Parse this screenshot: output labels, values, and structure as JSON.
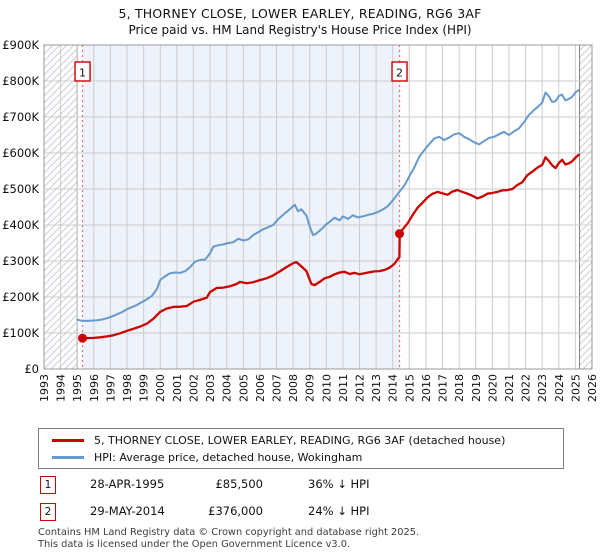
{
  "title": {
    "line1": "5, THORNEY CLOSE, LOWER EARLEY, READING, RG6 3AF",
    "line2": "Price paid vs. HM Land Registry's House Price Index (HPI)"
  },
  "colors": {
    "property_line": "#cc0000",
    "hpi_line": "#6699cc",
    "sale_band": "#edf2fb",
    "grid": "#cccccc",
    "plot_border": "#999999",
    "hatch_line": "#c9ced6",
    "hatch_edge": "#808080",
    "event_dash": "#e87070",
    "marker_border": "#cc0000"
  },
  "legend": [
    {
      "label": "5, THORNEY CLOSE, LOWER EARLEY, READING, RG6 3AF (detached house)",
      "color": "#cc0000"
    },
    {
      "label": "HPI: Average price, detached house, Wokingham",
      "color": "#6699cc"
    }
  ],
  "annotations": [
    {
      "num": "1",
      "date": "28-APR-1995",
      "price": "£85,500",
      "vs_hpi": "36% ↓ HPI"
    },
    {
      "num": "2",
      "date": "29-MAY-2014",
      "price": "£376,000",
      "vs_hpi": "24% ↓ HPI"
    }
  ],
  "footer": {
    "line1": "Contains HM Land Registry data © Crown copyright and database right 2025.",
    "line2": "This data is licensed under the Open Government Licence v3.0."
  },
  "chart_data": {
    "type": "line",
    "title": "Price paid vs. HM Land Registry's House Price Index (HPI)",
    "xlabel": "Year",
    "ylabel": "Price (GBP)",
    "xlim": [
      1993,
      2026
    ],
    "ylim": [
      0,
      900000
    ],
    "grid": true,
    "legend_position": "bottom",
    "x_ticks": [
      1993,
      1994,
      1995,
      1996,
      1997,
      1998,
      1999,
      2000,
      2001,
      2002,
      2003,
      2004,
      2005,
      2006,
      2007,
      2008,
      2009,
      2010,
      2011,
      2012,
      2013,
      2014,
      2015,
      2016,
      2017,
      2018,
      2019,
      2020,
      2021,
      2022,
      2023,
      2024,
      2025,
      2026
    ],
    "y_ticks": [
      {
        "v": 0,
        "label": "£0"
      },
      {
        "v": 100000,
        "label": "£100K"
      },
      {
        "v": 200000,
        "label": "£200K"
      },
      {
        "v": 300000,
        "label": "£300K"
      },
      {
        "v": 400000,
        "label": "£400K"
      },
      {
        "v": 500000,
        "label": "£500K"
      },
      {
        "v": 600000,
        "label": "£600K"
      },
      {
        "v": 700000,
        "label": "£700K"
      },
      {
        "v": 800000,
        "label": "£800K"
      },
      {
        "v": 900000,
        "label": "£900K"
      }
    ],
    "no_data_hatch_regions": [
      [
        1993,
        1995.0
      ],
      [
        2025.25,
        2026
      ]
    ],
    "ownership_shaded_region": [
      1995.32,
      2014.41
    ],
    "events": [
      {
        "n": "1",
        "x": 1995.32,
        "y": 85500,
        "date": "28-APR-1995",
        "price_paid": 85500,
        "vs_hpi": "36% below HPI"
      },
      {
        "n": "2",
        "x": 2014.41,
        "y": 376000,
        "date": "29-MAY-2014",
        "price_paid": 376000,
        "vs_hpi": "24% below HPI"
      }
    ],
    "series": [
      {
        "name": "HPI: Average price, detached house, Wokingham",
        "color": "#6699cc",
        "width": 2,
        "points": [
          [
            1995.0,
            137000
          ],
          [
            1995.3,
            134000
          ],
          [
            1995.6,
            133500
          ],
          [
            1995.9,
            134500
          ],
          [
            1996.2,
            135500
          ],
          [
            1996.5,
            137500
          ],
          [
            1996.8,
            141000
          ],
          [
            1997.1,
            146000
          ],
          [
            1997.4,
            152000
          ],
          [
            1997.7,
            158000
          ],
          [
            1998.0,
            166000
          ],
          [
            1998.3,
            172000
          ],
          [
            1998.6,
            178000
          ],
          [
            1998.9,
            186000
          ],
          [
            1999.2,
            194000
          ],
          [
            1999.5,
            203000
          ],
          [
            1999.8,
            222000
          ],
          [
            2000.0,
            247000
          ],
          [
            2000.3,
            258000
          ],
          [
            2000.6,
            266000
          ],
          [
            2000.9,
            268000
          ],
          [
            2001.2,
            267000
          ],
          [
            2001.5,
            272000
          ],
          [
            2001.8,
            283000
          ],
          [
            2002.1,
            298000
          ],
          [
            2002.4,
            303000
          ],
          [
            2002.7,
            304000
          ],
          [
            2003.0,
            322000
          ],
          [
            2003.2,
            340000
          ],
          [
            2003.5,
            344000
          ],
          [
            2003.8,
            346000
          ],
          [
            2004.1,
            350000
          ],
          [
            2004.4,
            352000
          ],
          [
            2004.7,
            362000
          ],
          [
            2005.0,
            357000
          ],
          [
            2005.3,
            360000
          ],
          [
            2005.6,
            372000
          ],
          [
            2005.9,
            380000
          ],
          [
            2006.2,
            388000
          ],
          [
            2006.5,
            394000
          ],
          [
            2006.8,
            400000
          ],
          [
            2007.1,
            416000
          ],
          [
            2007.4,
            428000
          ],
          [
            2007.7,
            440000
          ],
          [
            2008.0,
            452000
          ],
          [
            2008.1,
            456000
          ],
          [
            2008.3,
            438000
          ],
          [
            2008.5,
            444000
          ],
          [
            2008.8,
            426000
          ],
          [
            2009.0,
            396000
          ],
          [
            2009.2,
            372000
          ],
          [
            2009.4,
            376000
          ],
          [
            2009.7,
            388000
          ],
          [
            2010.0,
            402000
          ],
          [
            2010.2,
            409000
          ],
          [
            2010.5,
            420000
          ],
          [
            2010.8,
            413000
          ],
          [
            2011.0,
            424000
          ],
          [
            2011.3,
            417000
          ],
          [
            2011.6,
            427000
          ],
          [
            2011.9,
            421000
          ],
          [
            2012.2,
            424000
          ],
          [
            2012.5,
            428000
          ],
          [
            2012.8,
            431000
          ],
          [
            2013.1,
            436000
          ],
          [
            2013.4,
            443000
          ],
          [
            2013.7,
            452000
          ],
          [
            2014.0,
            468000
          ],
          [
            2014.2,
            480000
          ],
          [
            2014.4,
            492000
          ],
          [
            2014.7,
            510000
          ],
          [
            2015.0,
            535000
          ],
          [
            2015.3,
            560000
          ],
          [
            2015.6,
            590000
          ],
          [
            2015.9,
            608000
          ],
          [
            2016.2,
            625000
          ],
          [
            2016.5,
            640000
          ],
          [
            2016.8,
            645000
          ],
          [
            2017.1,
            636000
          ],
          [
            2017.4,
            643000
          ],
          [
            2017.7,
            652000
          ],
          [
            2018.0,
            655000
          ],
          [
            2018.3,
            645000
          ],
          [
            2018.6,
            638000
          ],
          [
            2018.9,
            630000
          ],
          [
            2019.2,
            624000
          ],
          [
            2019.5,
            633000
          ],
          [
            2019.8,
            642000
          ],
          [
            2020.1,
            645000
          ],
          [
            2020.4,
            652000
          ],
          [
            2020.7,
            659000
          ],
          [
            2021.0,
            650000
          ],
          [
            2021.3,
            660000
          ],
          [
            2021.6,
            668000
          ],
          [
            2021.9,
            685000
          ],
          [
            2022.2,
            706000
          ],
          [
            2022.5,
            719000
          ],
          [
            2022.8,
            731000
          ],
          [
            2023.0,
            740000
          ],
          [
            2023.2,
            768000
          ],
          [
            2023.4,
            758000
          ],
          [
            2023.6,
            742000
          ],
          [
            2023.8,
            744000
          ],
          [
            2024.0,
            758000
          ],
          [
            2024.2,
            762000
          ],
          [
            2024.4,
            746000
          ],
          [
            2024.6,
            750000
          ],
          [
            2024.8,
            756000
          ],
          [
            2025.0,
            768000
          ],
          [
            2025.2,
            775000
          ]
        ]
      },
      {
        "name": "5, THORNEY CLOSE, LOWER EARLEY, READING, RG6 3AF (detached house)",
        "color": "#cc0000",
        "width": 2.3,
        "points": [
          [
            1995.32,
            85500
          ],
          [
            1995.6,
            85800
          ],
          [
            1996.0,
            86500
          ],
          [
            1996.4,
            88000
          ],
          [
            1996.8,
            90500
          ],
          [
            1997.2,
            94000
          ],
          [
            1997.6,
            99500
          ],
          [
            1998.0,
            106000
          ],
          [
            1998.4,
            112000
          ],
          [
            1998.8,
            118000
          ],
          [
            1999.2,
            126000
          ],
          [
            1999.6,
            140000
          ],
          [
            2000.0,
            159000
          ],
          [
            2000.4,
            168000
          ],
          [
            2000.8,
            172500
          ],
          [
            2001.2,
            173000
          ],
          [
            2001.6,
            175000
          ],
          [
            2002.0,
            187000
          ],
          [
            2002.4,
            192000
          ],
          [
            2002.8,
            198000
          ],
          [
            2003.0,
            214000
          ],
          [
            2003.4,
            225000
          ],
          [
            2003.8,
            226000
          ],
          [
            2004.2,
            230000
          ],
          [
            2004.6,
            236000
          ],
          [
            2004.8,
            242000
          ],
          [
            2005.2,
            238000
          ],
          [
            2005.6,
            241000
          ],
          [
            2006.0,
            247000
          ],
          [
            2006.4,
            252000
          ],
          [
            2006.8,
            260000
          ],
          [
            2007.2,
            271000
          ],
          [
            2007.6,
            283000
          ],
          [
            2008.0,
            294000
          ],
          [
            2008.2,
            297000
          ],
          [
            2008.5,
            285000
          ],
          [
            2008.8,
            272000
          ],
          [
            2009.1,
            236000
          ],
          [
            2009.3,
            233000
          ],
          [
            2009.6,
            242000
          ],
          [
            2009.9,
            252000
          ],
          [
            2010.2,
            256000
          ],
          [
            2010.5,
            263000
          ],
          [
            2010.8,
            268000
          ],
          [
            2011.1,
            270000
          ],
          [
            2011.4,
            264000
          ],
          [
            2011.7,
            267000
          ],
          [
            2012.0,
            263000
          ],
          [
            2012.3,
            266000
          ],
          [
            2012.6,
            269000
          ],
          [
            2012.9,
            271000
          ],
          [
            2013.2,
            272000
          ],
          [
            2013.5,
            275000
          ],
          [
            2013.8,
            281000
          ],
          [
            2014.1,
            292000
          ],
          [
            2014.3,
            305000
          ],
          [
            2014.4,
            310000
          ],
          [
            2014.42,
            376000
          ],
          [
            2014.6,
            388000
          ],
          [
            2014.9,
            405000
          ],
          [
            2015.2,
            428000
          ],
          [
            2015.5,
            448000
          ],
          [
            2015.8,
            462000
          ],
          [
            2016.1,
            477000
          ],
          [
            2016.4,
            487000
          ],
          [
            2016.7,
            492000
          ],
          [
            2017.0,
            488000
          ],
          [
            2017.3,
            484000
          ],
          [
            2017.6,
            493000
          ],
          [
            2017.9,
            497000
          ],
          [
            2018.2,
            492000
          ],
          [
            2018.5,
            487000
          ],
          [
            2018.8,
            481000
          ],
          [
            2019.1,
            474000
          ],
          [
            2019.4,
            479000
          ],
          [
            2019.7,
            487000
          ],
          [
            2020.0,
            489000
          ],
          [
            2020.3,
            492000
          ],
          [
            2020.6,
            496000
          ],
          [
            2020.9,
            497000
          ],
          [
            2021.2,
            500000
          ],
          [
            2021.5,
            511000
          ],
          [
            2021.8,
            519000
          ],
          [
            2022.1,
            538000
          ],
          [
            2022.4,
            548000
          ],
          [
            2022.7,
            559000
          ],
          [
            2023.0,
            567000
          ],
          [
            2023.2,
            588000
          ],
          [
            2023.4,
            578000
          ],
          [
            2023.6,
            566000
          ],
          [
            2023.8,
            558000
          ],
          [
            2024.0,
            572000
          ],
          [
            2024.2,
            581000
          ],
          [
            2024.4,
            568000
          ],
          [
            2024.6,
            571000
          ],
          [
            2024.8,
            577000
          ],
          [
            2025.0,
            587000
          ],
          [
            2025.2,
            595000
          ]
        ]
      }
    ]
  }
}
